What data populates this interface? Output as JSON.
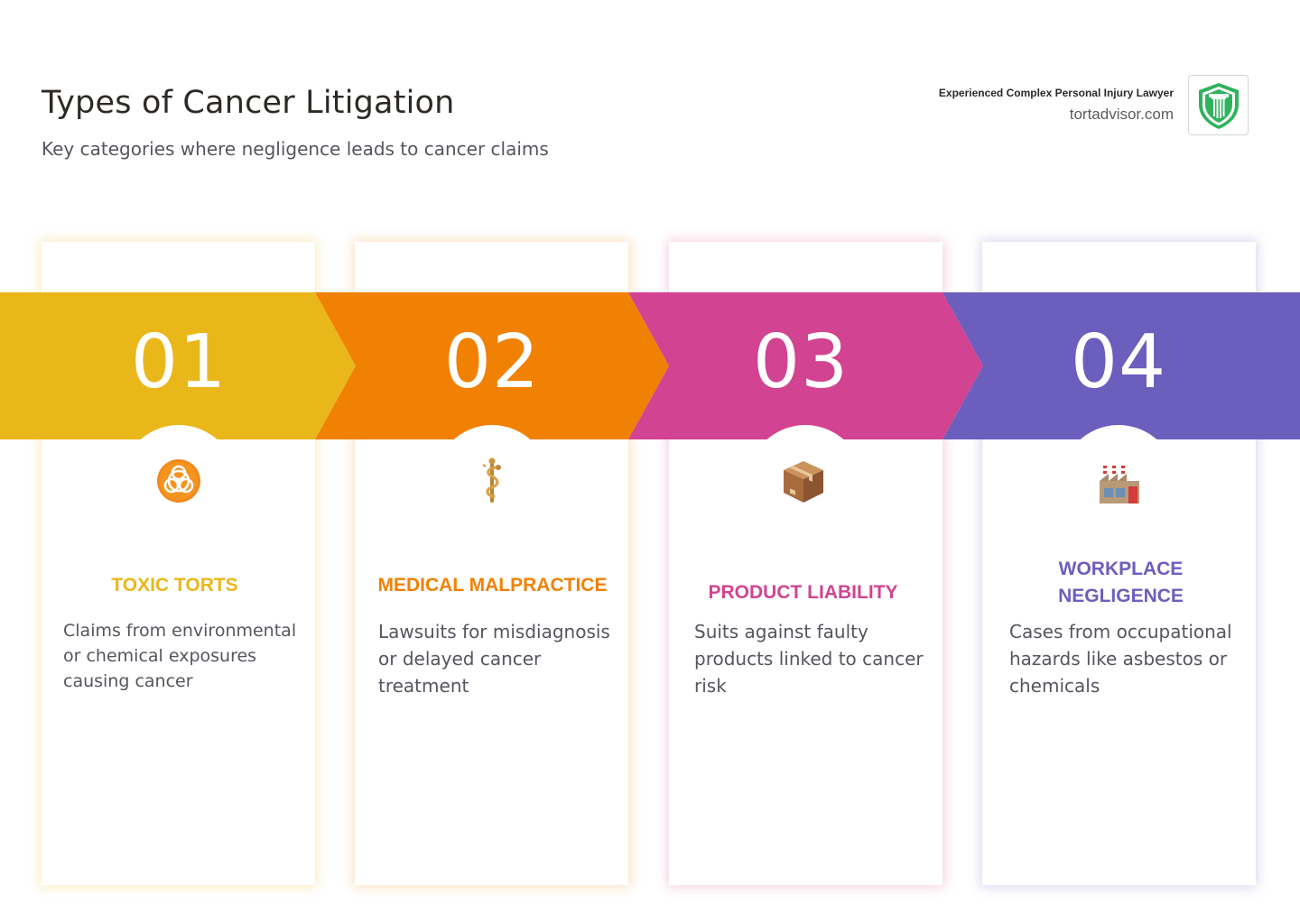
{
  "header": {
    "title": "Types of Cancer Litigation",
    "subtitle": "Key categories where negligence leads to cancer claims"
  },
  "brand": {
    "tagline": "Experienced Complex Personal Injury Lawyer",
    "site": "tortadvisor.com",
    "logo_icon": "shield-pillar-icon",
    "logo_color": "#2fb35c"
  },
  "steps": [
    {
      "number": "01",
      "label": "TOXIC TORTS",
      "description": "Claims from environmental or chemical exposures causing cancer",
      "icon": "biohazard-icon",
      "color": "#eab71b"
    },
    {
      "number": "02",
      "label": "MEDICAL MALPRACTICE",
      "description": "Lawsuits for misdiagnosis or delayed cancer treatment",
      "icon": "medical-caduceus-icon",
      "color": "#f08103"
    },
    {
      "number": "03",
      "label": "PRODUCT LIABILITY",
      "description": "Suits against faulty products linked to cancer risk",
      "icon": "package-box-icon",
      "color": "#d24391"
    },
    {
      "number": "04",
      "label": "WORKPLACE NEGLIGENCE",
      "description": "Cases from occupational hazards like asbestos or chemicals",
      "icon": "factory-icon",
      "color": "#6c5ebd"
    }
  ]
}
